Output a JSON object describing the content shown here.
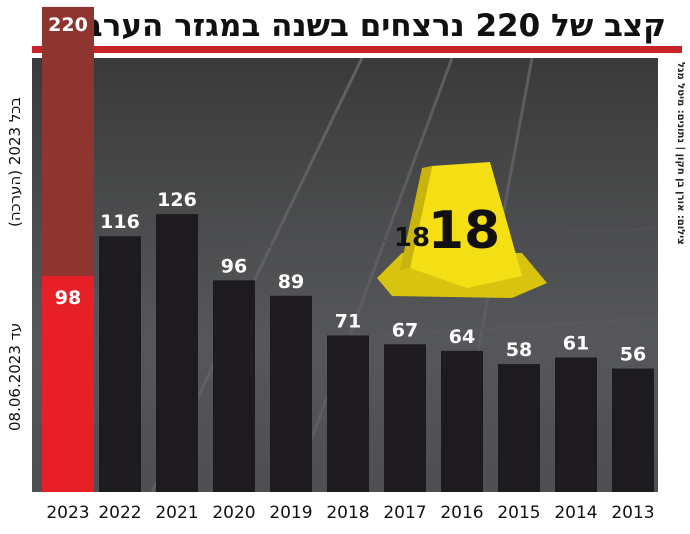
{
  "title": "קצב של 220 נרצחים בשנה במגזר הערבי",
  "credit": "צילום: אורן בן חקון | נתונים: מיטל מגל",
  "side_label_top": "בכל 2023 (הערכה)",
  "side_label_bottom": "עד 08.06.2023",
  "colors": {
    "accent_red": "#c8222a",
    "bar_dark": "#1d1b1e",
    "bar_highlight": "#e62026",
    "bar_estimate": "#8e3530"
  },
  "chart_data": {
    "type": "bar",
    "categories": [
      "2013",
      "2014",
      "2015",
      "2016",
      "2017",
      "2018",
      "2019",
      "2020",
      "2021",
      "2022",
      "2023"
    ],
    "values": [
      56,
      61,
      58,
      64,
      67,
      71,
      89,
      96,
      126,
      116,
      98
    ],
    "estimate": {
      "category": "2023",
      "value": 220
    },
    "title": "קצב של 220 נרצחים בשנה במגזר הערבי",
    "xlabel": "",
    "ylabel": "",
    "ylim": [
      0,
      220
    ],
    "grid": false,
    "legend": "none"
  }
}
